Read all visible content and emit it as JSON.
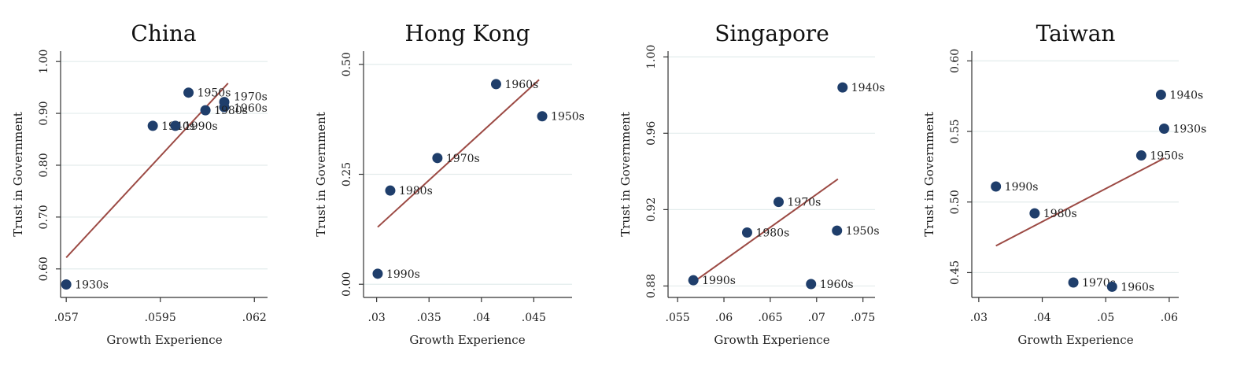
{
  "colors": {
    "marker": "#1f3e6b",
    "fit_line": "#9c4a44",
    "grid": "#e3ecec"
  },
  "chart_data": [
    {
      "type": "scatter",
      "title": "China",
      "xlabel": "Growth Experience",
      "ylabel": "Trust in Government",
      "xlim": [
        0.05685,
        0.06235
      ],
      "ylim": [
        0.545,
        1.02
      ],
      "xticks": [
        0.057,
        0.0595,
        0.062
      ],
      "xtick_labels": [
        ".057",
        ".0595",
        ".062"
      ],
      "yticks": [
        0.6,
        0.7,
        0.8,
        0.9,
        1.0
      ],
      "ytick_labels": [
        "0.60",
        "0.70",
        "0.80",
        "0.90",
        "1.00"
      ],
      "grid": true,
      "points": [
        {
          "label": "1930s",
          "x": 0.057,
          "y": 0.57
        },
        {
          "label": "1940s",
          "x": 0.0593,
          "y": 0.876
        },
        {
          "label": "1950s",
          "x": 0.06025,
          "y": 0.94
        },
        {
          "label": "1960s",
          "x": 0.0612,
          "y": 0.912
        },
        {
          "label": "1970s",
          "x": 0.0612,
          "y": 0.922
        },
        {
          "label": "1980s",
          "x": 0.0607,
          "y": 0.906
        },
        {
          "label": "1990s",
          "x": 0.0599,
          "y": 0.876
        }
      ],
      "fit": {
        "x": [
          0.057,
          0.0613
        ],
        "y": [
          0.622,
          0.958
        ]
      }
    },
    {
      "type": "scatter",
      "title": "Hong Kong",
      "xlabel": "Growth Experience",
      "ylabel": "Trust in Government",
      "xlim": [
        0.02875,
        0.04865
      ],
      "ylim": [
        -0.03,
        0.53
      ],
      "xticks": [
        0.03,
        0.035,
        0.04,
        0.045
      ],
      "xtick_labels": [
        ".03",
        ".035",
        ".04",
        ".045"
      ],
      "yticks": [
        0.0,
        0.25,
        0.5
      ],
      "ytick_labels": [
        "0.00",
        "0.25",
        "0.50"
      ],
      "grid": true,
      "points": [
        {
          "label": "1960s",
          "x": 0.0414,
          "y": 0.455
        },
        {
          "label": "1950s",
          "x": 0.0458,
          "y": 0.382
        },
        {
          "label": "1970s",
          "x": 0.0358,
          "y": 0.287
        },
        {
          "label": "1980s",
          "x": 0.0313,
          "y": 0.213
        },
        {
          "label": "1990s",
          "x": 0.0301,
          "y": 0.024
        }
      ],
      "fit": {
        "x": [
          0.0301,
          0.0455
        ],
        "y": [
          0.13,
          0.465
        ]
      }
    },
    {
      "type": "scatter",
      "title": "Singapore",
      "xlabel": "Growth Experience",
      "ylabel": "Trust in Government",
      "xlim": [
        0.05397,
        0.0763
      ],
      "ylim": [
        0.874,
        1.003
      ],
      "xticks": [
        0.055,
        0.06,
        0.065,
        0.07,
        0.075
      ],
      "xtick_labels": [
        ".055",
        ".06",
        ".065",
        ".07",
        ".075"
      ],
      "yticks": [
        0.88,
        0.92,
        0.96,
        1.0
      ],
      "ytick_labels": [
        "0.88",
        "0.92",
        "0.96",
        "1.00"
      ],
      "grid": true,
      "points": [
        {
          "label": "1940s",
          "x": 0.0728,
          "y": 0.984
        },
        {
          "label": "1970s",
          "x": 0.0659,
          "y": 0.924
        },
        {
          "label": "1980s",
          "x": 0.0625,
          "y": 0.908
        },
        {
          "label": "1950s",
          "x": 0.0722,
          "y": 0.909
        },
        {
          "label": "1960s",
          "x": 0.0694,
          "y": 0.881
        },
        {
          "label": "1990s",
          "x": 0.0567,
          "y": 0.883
        }
      ],
      "fit": {
        "x": [
          0.0567,
          0.0723
        ],
        "y": [
          0.882,
          0.936
        ]
      }
    },
    {
      "type": "scatter",
      "title": "Taiwan",
      "xlabel": "Growth Experience",
      "ylabel": "Trust in Government",
      "xlim": [
        0.0289,
        0.0615
      ],
      "ylim": [
        0.4324,
        0.6069
      ],
      "xticks": [
        0.03,
        0.04,
        0.05,
        0.06
      ],
      "xtick_labels": [
        ".03",
        ".04",
        ".05",
        ".06"
      ],
      "yticks": [
        0.45,
        0.5,
        0.55,
        0.6
      ],
      "ytick_labels": [
        "0.45",
        "0.50",
        "0.55",
        "0.60"
      ],
      "grid": true,
      "points": [
        {
          "label": "1940s",
          "x": 0.0587,
          "y": 0.576
        },
        {
          "label": "1930s",
          "x": 0.0592,
          "y": 0.552
        },
        {
          "label": "1950s",
          "x": 0.0556,
          "y": 0.533
        },
        {
          "label": "1990s",
          "x": 0.0327,
          "y": 0.511
        },
        {
          "label": "1980s",
          "x": 0.0388,
          "y": 0.492
        },
        {
          "label": "1970s",
          "x": 0.0449,
          "y": 0.443
        },
        {
          "label": "1960s",
          "x": 0.051,
          "y": 0.44
        }
      ],
      "fit": {
        "x": [
          0.0327,
          0.0592
        ],
        "y": [
          0.469,
          0.531
        ]
      }
    }
  ]
}
